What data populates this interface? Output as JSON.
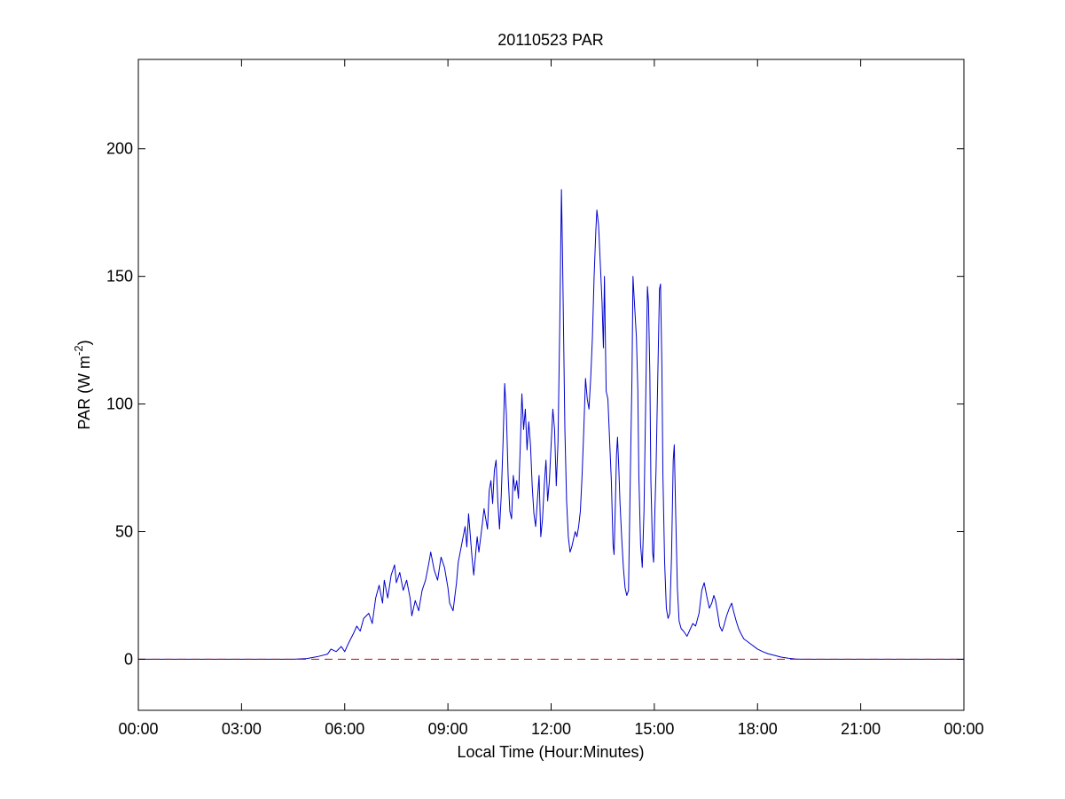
{
  "chart_data": {
    "type": "line",
    "title": "20110523 PAR",
    "xlabel": "Local Time (Hour:Minutes)",
    "ylabel": {
      "base": "PAR (W m",
      "superscript": "-2",
      "close": ")"
    },
    "xlim": [
      0,
      24
    ],
    "ylim": [
      -20,
      235
    ],
    "x_ticks": [
      {
        "value": 0,
        "label": "00:00"
      },
      {
        "value": 3,
        "label": "03:00"
      },
      {
        "value": 6,
        "label": "06:00"
      },
      {
        "value": 9,
        "label": "09:00"
      },
      {
        "value": 12,
        "label": "12:00"
      },
      {
        "value": 15,
        "label": "15:00"
      },
      {
        "value": 18,
        "label": "18:00"
      },
      {
        "value": 21,
        "label": "21:00"
      },
      {
        "value": 24,
        "label": "00:00"
      }
    ],
    "y_ticks": [
      {
        "value": 0,
        "label": "0"
      },
      {
        "value": 50,
        "label": "50"
      },
      {
        "value": 100,
        "label": "100"
      },
      {
        "value": 150,
        "label": "150"
      },
      {
        "value": 200,
        "label": "200"
      }
    ],
    "grid": false,
    "reference_line": {
      "y": 0,
      "style": "dashed",
      "color": "#cc0000"
    },
    "series": [
      {
        "color": "#0000cc",
        "points": [
          [
            0.0,
            0
          ],
          [
            4.5,
            0
          ],
          [
            4.9,
            0.3
          ],
          [
            5.2,
            1
          ],
          [
            5.5,
            2
          ],
          [
            5.6,
            4
          ],
          [
            5.75,
            3
          ],
          [
            5.9,
            5
          ],
          [
            6.0,
            3
          ],
          [
            6.1,
            6
          ],
          [
            6.25,
            10
          ],
          [
            6.35,
            13
          ],
          [
            6.45,
            11
          ],
          [
            6.55,
            16
          ],
          [
            6.7,
            18
          ],
          [
            6.8,
            14
          ],
          [
            6.9,
            24
          ],
          [
            7.0,
            29
          ],
          [
            7.1,
            22
          ],
          [
            7.15,
            31
          ],
          [
            7.25,
            24
          ],
          [
            7.35,
            33
          ],
          [
            7.45,
            37
          ],
          [
            7.5,
            30
          ],
          [
            7.6,
            34
          ],
          [
            7.7,
            27
          ],
          [
            7.8,
            31
          ],
          [
            7.9,
            24
          ],
          [
            7.95,
            17
          ],
          [
            8.05,
            23
          ],
          [
            8.15,
            19
          ],
          [
            8.25,
            27
          ],
          [
            8.35,
            31
          ],
          [
            8.45,
            38
          ],
          [
            8.5,
            42
          ],
          [
            8.6,
            35
          ],
          [
            8.7,
            31
          ],
          [
            8.8,
            40
          ],
          [
            8.9,
            36
          ],
          [
            9.0,
            28
          ],
          [
            9.05,
            22
          ],
          [
            9.15,
            19
          ],
          [
            9.25,
            30
          ],
          [
            9.3,
            38
          ],
          [
            9.4,
            45
          ],
          [
            9.5,
            52
          ],
          [
            9.55,
            44
          ],
          [
            9.6,
            57
          ],
          [
            9.7,
            40
          ],
          [
            9.75,
            33
          ],
          [
            9.85,
            48
          ],
          [
            9.9,
            42
          ],
          [
            10.0,
            53
          ],
          [
            10.05,
            59
          ],
          [
            10.15,
            51
          ],
          [
            10.2,
            66
          ],
          [
            10.25,
            70
          ],
          [
            10.3,
            61
          ],
          [
            10.35,
            74
          ],
          [
            10.4,
            78
          ],
          [
            10.45,
            62
          ],
          [
            10.5,
            51
          ],
          [
            10.55,
            64
          ],
          [
            10.6,
            84
          ],
          [
            10.65,
            108
          ],
          [
            10.7,
            96
          ],
          [
            10.75,
            72
          ],
          [
            10.8,
            58
          ],
          [
            10.85,
            55
          ],
          [
            10.9,
            72
          ],
          [
            10.95,
            66
          ],
          [
            11.0,
            70
          ],
          [
            11.05,
            63
          ],
          [
            11.1,
            82
          ],
          [
            11.15,
            104
          ],
          [
            11.2,
            90
          ],
          [
            11.25,
            98
          ],
          [
            11.3,
            82
          ],
          [
            11.35,
            93
          ],
          [
            11.4,
            84
          ],
          [
            11.45,
            68
          ],
          [
            11.5,
            57
          ],
          [
            11.55,
            52
          ],
          [
            11.6,
            62
          ],
          [
            11.65,
            72
          ],
          [
            11.7,
            48
          ],
          [
            11.75,
            55
          ],
          [
            11.8,
            68
          ],
          [
            11.85,
            78
          ],
          [
            11.9,
            62
          ],
          [
            11.95,
            70
          ],
          [
            12.0,
            84
          ],
          [
            12.05,
            98
          ],
          [
            12.1,
            90
          ],
          [
            12.15,
            68
          ],
          [
            12.2,
            85
          ],
          [
            12.25,
            130
          ],
          [
            12.3,
            184
          ],
          [
            12.33,
            160
          ],
          [
            12.4,
            90
          ],
          [
            12.45,
            62
          ],
          [
            12.5,
            48
          ],
          [
            12.55,
            42
          ],
          [
            12.6,
            44
          ],
          [
            12.7,
            50
          ],
          [
            12.75,
            48
          ],
          [
            12.8,
            52
          ],
          [
            12.85,
            58
          ],
          [
            12.9,
            72
          ],
          [
            12.95,
            90
          ],
          [
            13.0,
            110
          ],
          [
            13.05,
            102
          ],
          [
            13.1,
            98
          ],
          [
            13.15,
            110
          ],
          [
            13.2,
            126
          ],
          [
            13.25,
            150
          ],
          [
            13.3,
            168
          ],
          [
            13.33,
            176
          ],
          [
            13.38,
            170
          ],
          [
            13.42,
            158
          ],
          [
            13.48,
            140
          ],
          [
            13.52,
            122
          ],
          [
            13.55,
            150
          ],
          [
            13.6,
            105
          ],
          [
            13.65,
            102
          ],
          [
            13.7,
            86
          ],
          [
            13.75,
            70
          ],
          [
            13.8,
            45
          ],
          [
            13.83,
            41
          ],
          [
            13.87,
            62
          ],
          [
            13.9,
            80
          ],
          [
            13.93,
            87
          ],
          [
            13.97,
            74
          ],
          [
            14.0,
            62
          ],
          [
            14.05,
            48
          ],
          [
            14.1,
            36
          ],
          [
            14.15,
            28
          ],
          [
            14.2,
            25
          ],
          [
            14.25,
            27
          ],
          [
            14.3,
            70
          ],
          [
            14.35,
            110
          ],
          [
            14.38,
            150
          ],
          [
            14.42,
            140
          ],
          [
            14.48,
            126
          ],
          [
            14.52,
            106
          ],
          [
            14.55,
            72
          ],
          [
            14.6,
            45
          ],
          [
            14.65,
            36
          ],
          [
            14.7,
            58
          ],
          [
            14.75,
            102
          ],
          [
            14.8,
            146
          ],
          [
            14.83,
            140
          ],
          [
            14.87,
            112
          ],
          [
            14.9,
            70
          ],
          [
            14.95,
            42
          ],
          [
            14.98,
            38
          ],
          [
            15.02,
            60
          ],
          [
            15.05,
            74
          ],
          [
            15.1,
            110
          ],
          [
            15.15,
            145
          ],
          [
            15.18,
            147
          ],
          [
            15.22,
            115
          ],
          [
            15.25,
            72
          ],
          [
            15.3,
            38
          ],
          [
            15.35,
            20
          ],
          [
            15.4,
            16
          ],
          [
            15.45,
            18
          ],
          [
            15.5,
            40
          ],
          [
            15.55,
            78
          ],
          [
            15.58,
            84
          ],
          [
            15.62,
            58
          ],
          [
            15.67,
            28
          ],
          [
            15.72,
            15
          ],
          [
            15.78,
            12
          ],
          [
            15.85,
            11
          ],
          [
            15.95,
            9
          ],
          [
            16.05,
            12
          ],
          [
            16.12,
            14
          ],
          [
            16.2,
            13
          ],
          [
            16.3,
            18
          ],
          [
            16.38,
            27
          ],
          [
            16.45,
            30
          ],
          [
            16.52,
            25
          ],
          [
            16.6,
            20
          ],
          [
            16.67,
            22
          ],
          [
            16.73,
            25
          ],
          [
            16.78,
            23
          ],
          [
            16.83,
            19
          ],
          [
            16.9,
            13
          ],
          [
            16.97,
            11
          ],
          [
            17.02,
            13
          ],
          [
            17.1,
            17
          ],
          [
            17.18,
            20
          ],
          [
            17.25,
            22
          ],
          [
            17.3,
            19
          ],
          [
            17.38,
            15
          ],
          [
            17.45,
            12
          ],
          [
            17.52,
            10
          ],
          [
            17.6,
            8
          ],
          [
            17.7,
            7
          ],
          [
            17.8,
            6
          ],
          [
            17.9,
            5
          ],
          [
            18.0,
            4
          ],
          [
            18.15,
            3
          ],
          [
            18.3,
            2.2
          ],
          [
            18.5,
            1.5
          ],
          [
            18.7,
            0.8
          ],
          [
            18.9,
            0.4
          ],
          [
            19.1,
            0.1
          ],
          [
            19.3,
            0
          ],
          [
            24.0,
            0
          ]
        ]
      }
    ]
  }
}
